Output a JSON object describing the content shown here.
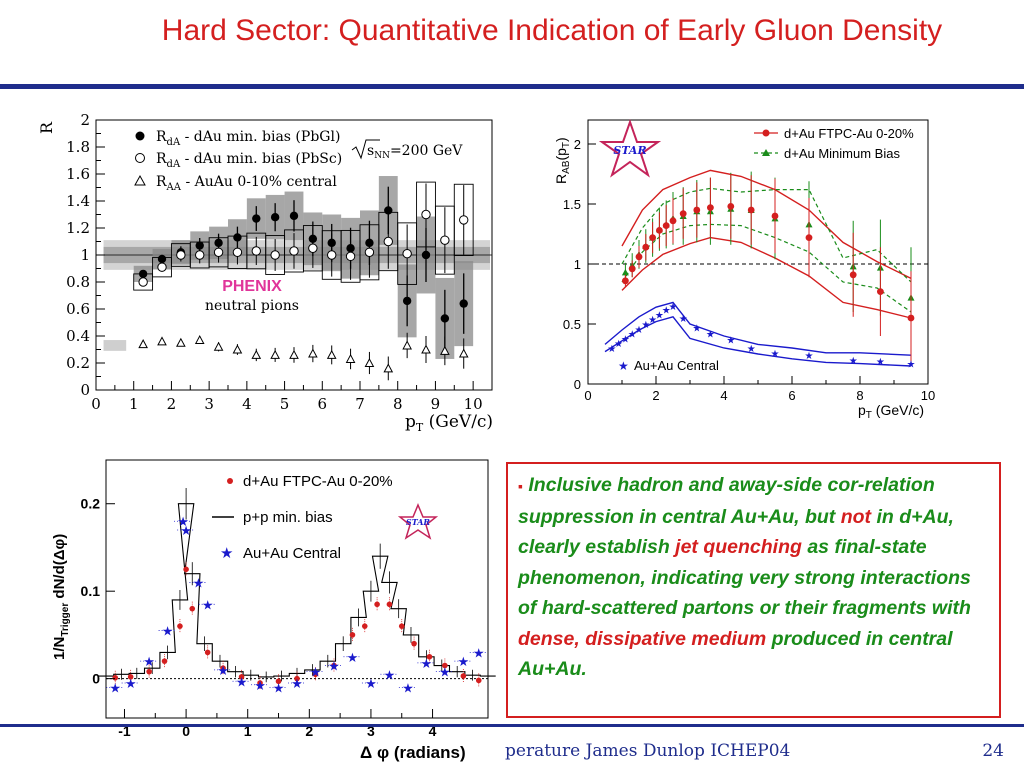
{
  "slide": {
    "title": "Hard Sector: Quantitative Indication of Early Gluon Density",
    "footer": "perature James Dunlop ICHEP04",
    "page_number": "24",
    "colors": {
      "title": "#d41f1f",
      "rule": "#1f2d8c",
      "green": "#1a8c1a",
      "red": "#d41f1f",
      "blue": "#1a1acc"
    }
  },
  "callout": {
    "bullet": "▪",
    "part1": "Inclusive hadron and away-side cor-relation suppression in central Au+Au, but ",
    "part2": "not",
    "part3": " in d+Au, clearly establish ",
    "part4": "jet quenching",
    "part5": " as final-state phenomenon, indicating very strong interactions of hard-scattered partons or their fragments with ",
    "part6": "dense, dissipative medium",
    "part7": " produced in central Au+Au."
  },
  "chart_data": [
    {
      "id": "phenix",
      "type": "scatter",
      "xlabel_main": "p",
      "xlabel_sub": "T",
      "xlabel_unit": " (GeV/c)",
      "ylabel": "R",
      "xlim": [
        0,
        10.5
      ],
      "ylim": [
        0,
        2
      ],
      "xticks": [
        "0",
        "1",
        "2",
        "3",
        "4",
        "5",
        "6",
        "7",
        "8",
        "9",
        "10"
      ],
      "yticks": [
        "0",
        "0.2",
        "0.4",
        "0.6",
        "0.8",
        "1",
        "1.2",
        "1.4",
        "1.6",
        "1.8",
        "2"
      ],
      "legend": {
        "main": "R",
        "entries": [
          {
            "sub": "dA",
            "text": " - dAu min. bias (PbGl)"
          },
          {
            "sub": "dA",
            "text": " - dAu min. bias (PbSc)"
          },
          {
            "sub": "AA",
            "text": " - AuAu 0-10% central"
          }
        ],
        "energy_sqrt": "s",
        "energy_sub": "NN",
        "energy_rest": "=200 GeV"
      },
      "label_experiment": "PHENIX",
      "label_particles": "neutral pions",
      "series": [
        {
          "name": "dAu min. bias (PbGl)",
          "x": [
            1.25,
            1.75,
            2.25,
            2.75,
            3.25,
            3.75,
            4.25,
            4.75,
            5.25,
            5.75,
            6.25,
            6.75,
            7.25,
            7.75,
            8.25,
            8.75,
            9.25,
            9.75
          ],
          "y": [
            0.86,
            0.97,
            1.02,
            1.07,
            1.09,
            1.13,
            1.27,
            1.28,
            1.29,
            1.12,
            1.09,
            1.05,
            1.09,
            1.33,
            0.66,
            1.0,
            0.53,
            0.64
          ]
        },
        {
          "name": "dAu min. bias (PbSc)",
          "x": [
            1.25,
            1.75,
            2.25,
            2.75,
            3.25,
            3.75,
            4.25,
            4.75,
            5.25,
            5.75,
            6.25,
            6.75,
            7.25,
            7.75,
            8.25,
            8.75,
            9.25,
            9.75
          ],
          "y": [
            0.8,
            0.91,
            1.0,
            1.0,
            1.02,
            1.02,
            1.03,
            1.0,
            1.03,
            1.05,
            1.0,
            0.99,
            1.02,
            1.1,
            1.01,
            1.3,
            1.11,
            1.26
          ]
        },
        {
          "name": "AuAu 0-10% central",
          "x": [
            1.25,
            1.75,
            2.25,
            2.75,
            3.25,
            3.75,
            4.25,
            4.75,
            5.25,
            5.75,
            6.25,
            6.75,
            7.25,
            7.75,
            8.25,
            8.75,
            9.25,
            9.75
          ],
          "y": [
            0.34,
            0.36,
            0.35,
            0.37,
            0.32,
            0.3,
            0.26,
            0.26,
            0.26,
            0.27,
            0.26,
            0.23,
            0.2,
            0.16,
            0.33,
            0.3,
            0.29,
            0.27
          ]
        }
      ]
    },
    {
      "id": "star-rab",
      "type": "line",
      "xlabel_main": "p",
      "xlabel_sub": "T",
      "xlabel_unit": " (GeV/c)",
      "ylabel_main": "R",
      "ylabel_sub": "AB",
      "ylabel_arg": "(p",
      "ylabel_arg_sub": "T",
      "ylabel_close": ")",
      "xlim": [
        0,
        10
      ],
      "ylim": [
        0,
        2.2
      ],
      "xticks": [
        "0",
        "2",
        "4",
        "6",
        "8",
        "10"
      ],
      "yticks": [
        "0",
        "0.5",
        "1",
        "1.5",
        "2"
      ],
      "logo": "STAR",
      "legend": [
        {
          "name": "d+Au FTPC-Au 0-20%",
          "color": "#d41f1f"
        },
        {
          "name": "d+Au Minimum Bias",
          "color": "#1a8c1a"
        },
        {
          "name": "Au+Au Central",
          "color": "#1a1acc"
        }
      ],
      "series": [
        {
          "name": "d+Au FTPC-Au 0-20%",
          "x": [
            1.1,
            1.3,
            1.5,
            1.7,
            1.9,
            2.1,
            2.3,
            2.5,
            2.8,
            3.2,
            3.6,
            4.2,
            4.8,
            5.5,
            6.5,
            7.8,
            8.6,
            9.5
          ],
          "y": [
            0.86,
            0.96,
            1.06,
            1.14,
            1.22,
            1.28,
            1.32,
            1.36,
            1.42,
            1.45,
            1.47,
            1.48,
            1.45,
            1.4,
            1.22,
            0.91,
            0.77,
            0.55
          ]
        },
        {
          "name": "d+Au Minimum Bias",
          "x": [
            1.1,
            1.3,
            1.5,
            1.7,
            1.9,
            2.1,
            2.3,
            2.5,
            2.8,
            3.2,
            3.6,
            4.2,
            4.8,
            5.5,
            6.5,
            7.8,
            8.6,
            9.5
          ],
          "y": [
            0.93,
            0.99,
            1.08,
            1.15,
            1.22,
            1.29,
            1.33,
            1.38,
            1.4,
            1.44,
            1.44,
            1.46,
            1.45,
            1.38,
            1.33,
            0.98,
            0.97,
            0.72
          ]
        },
        {
          "name": "Au+Au Central",
          "x": [
            0.7,
            0.9,
            1.1,
            1.3,
            1.5,
            1.7,
            1.9,
            2.1,
            2.3,
            2.5,
            2.8,
            3.2,
            3.6,
            4.2,
            4.8,
            5.5,
            6.5,
            7.8,
            8.6,
            9.5
          ],
          "y": [
            0.3,
            0.34,
            0.38,
            0.42,
            0.46,
            0.5,
            0.54,
            0.58,
            0.62,
            0.65,
            0.55,
            0.47,
            0.42,
            0.37,
            0.3,
            0.26,
            0.24,
            0.2,
            0.19,
            0.17
          ]
        }
      ]
    },
    {
      "id": "star-dphi",
      "type": "line",
      "xlabel": "Δ φ (radians)",
      "ylabel_main": "1/N",
      "ylabel_sub": "Trigger",
      "ylabel_rest": " dN/d(Δφ)",
      "xlim": [
        -1.3,
        4.9
      ],
      "ylim": [
        -0.045,
        0.25
      ],
      "xticks": [
        "-1",
        "0",
        "1",
        "2",
        "3",
        "4"
      ],
      "yticks": [
        "0",
        "0.1",
        "0.2"
      ],
      "logo": "STAR",
      "legend": [
        {
          "name": "d+Au FTPC-Au 0-20%"
        },
        {
          "name": "p+p min. bias"
        },
        {
          "name": "Au+Au Central"
        }
      ],
      "series": [
        {
          "name": "d+Au FTPC-Au 0-20%",
          "x": [
            -1.15,
            -0.9,
            -0.6,
            -0.35,
            -0.1,
            0.0,
            0.1,
            0.35,
            0.6,
            0.9,
            1.2,
            1.5,
            1.8,
            2.1,
            2.4,
            2.7,
            2.9,
            3.1,
            3.3,
            3.5,
            3.7,
            3.95,
            4.2,
            4.5,
            4.75
          ],
          "y": [
            0.001,
            0.002,
            0.008,
            0.02,
            0.06,
            0.125,
            0.08,
            0.03,
            0.012,
            0.002,
            -0.005,
            -0.003,
            0.0,
            0.005,
            0.015,
            0.05,
            0.06,
            0.085,
            0.085,
            0.06,
            0.04,
            0.025,
            0.015,
            0.003,
            -0.002
          ]
        },
        {
          "name": "p+p min. bias",
          "x": [
            -1.3,
            -1.05,
            -0.8,
            -0.55,
            -0.3,
            -0.1,
            0.0,
            0.1,
            0.3,
            0.55,
            0.8,
            1.05,
            1.3,
            1.55,
            1.8,
            2.05,
            2.3,
            2.55,
            2.8,
            3.0,
            3.15,
            3.3,
            3.45,
            3.65,
            3.9,
            4.15,
            4.4,
            4.65,
            4.9
          ],
          "y": [
            0.003,
            0.005,
            0.006,
            0.012,
            0.03,
            0.09,
            0.2,
            0.12,
            0.04,
            0.02,
            0.008,
            0.004,
            0.002,
            0.003,
            0.006,
            0.01,
            0.02,
            0.04,
            0.07,
            0.1,
            0.14,
            0.11,
            0.08,
            0.05,
            0.025,
            0.015,
            0.008,
            0.004,
            0.003
          ]
        },
        {
          "name": "Au+Au Central",
          "x": [
            -1.15,
            -0.9,
            -0.6,
            -0.3,
            -0.05,
            0.0,
            0.2,
            0.35,
            0.6,
            0.9,
            1.2,
            1.5,
            1.8,
            2.1,
            2.4,
            2.7,
            3.0,
            3.3,
            3.6,
            3.9,
            4.2,
            4.5,
            4.75
          ],
          "y": [
            -0.01,
            -0.005,
            0.02,
            0.055,
            0.18,
            0.17,
            0.11,
            0.085,
            0.01,
            -0.003,
            -0.007,
            -0.01,
            -0.005,
            0.008,
            0.015,
            0.025,
            -0.005,
            0.005,
            -0.01,
            0.018,
            0.008,
            0.02,
            0.03
          ]
        }
      ]
    }
  ]
}
